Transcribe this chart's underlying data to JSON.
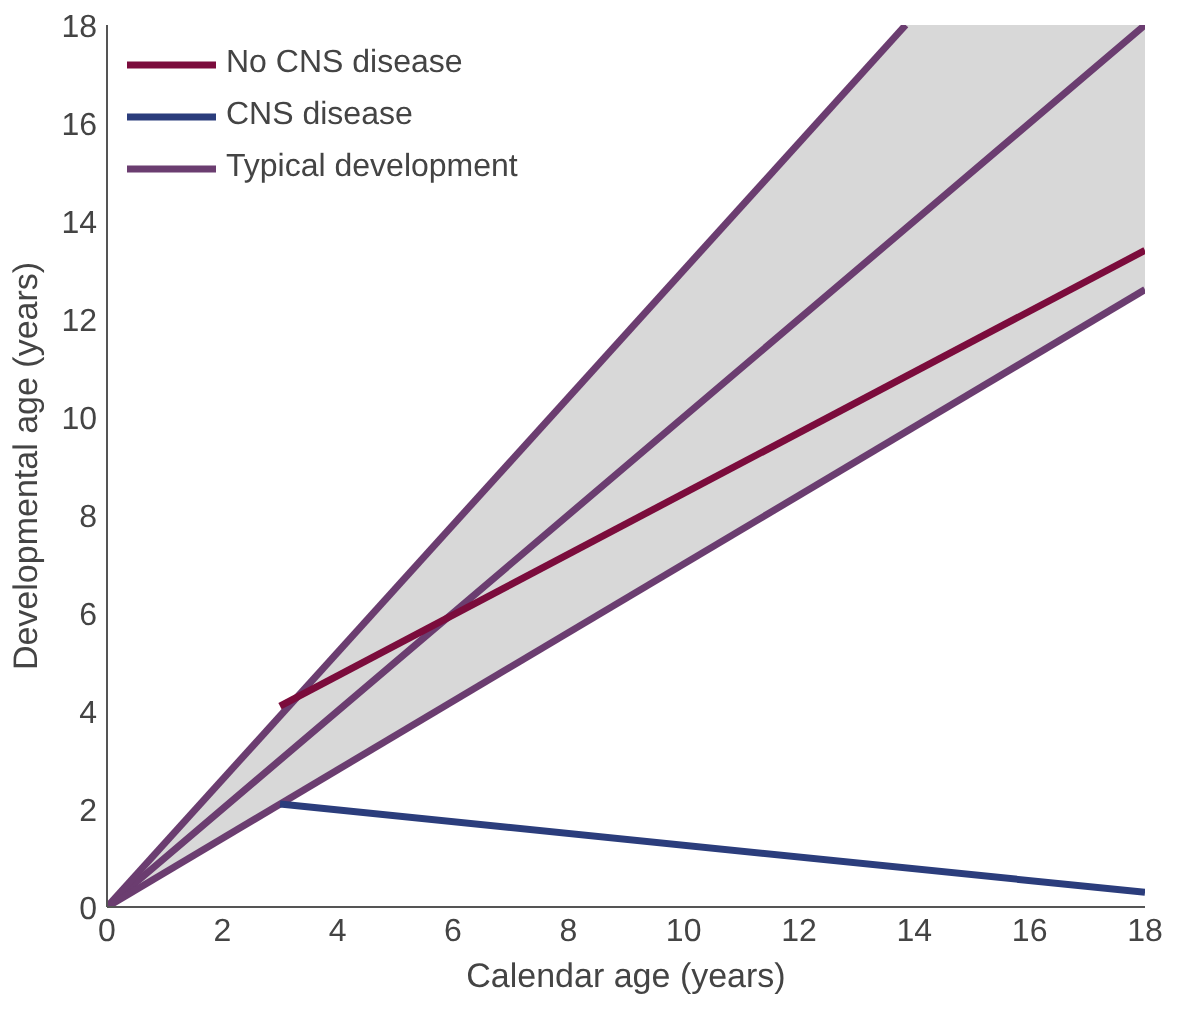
{
  "chart_data": {
    "type": "line",
    "xlabel": "Calendar age (years)",
    "ylabel": "Developmental age (years)",
    "xlim": [
      0,
      18
    ],
    "ylim": [
      0,
      18
    ],
    "xticks": [
      0,
      2,
      4,
      6,
      8,
      10,
      12,
      14,
      16,
      18
    ],
    "yticks": [
      0,
      2,
      4,
      6,
      8,
      10,
      12,
      14,
      16,
      18
    ],
    "grid": false,
    "legend": "top left",
    "series": [
      {
        "name": "Typical development",
        "color": "#6b3d70",
        "x": [
          0,
          13.85,
          18
        ],
        "values": [
          0,
          13.85,
          18
        ],
        "lower": [
          0,
          9.7,
          12.6
        ],
        "upper": [
          0,
          18,
          18
        ]
      },
      {
        "color": "#6b3d70",
        "x": [
          0,
          13.85
        ],
        "values": [
          0,
          18
        ]
      },
      {
        "color": "#6b3d70",
        "x": [
          0,
          18
        ],
        "values": [
          0,
          12.6
        ]
      },
      {
        "name": "No CNS disease",
        "color": "#7b0c3c",
        "x": [
          3,
          18
        ],
        "values": [
          4.1,
          13.4
        ]
      },
      {
        "name": "CNS disease",
        "color": "#2b3d7c",
        "x": [
          3,
          18
        ],
        "values": [
          2.1,
          0.3
        ]
      }
    ]
  }
}
